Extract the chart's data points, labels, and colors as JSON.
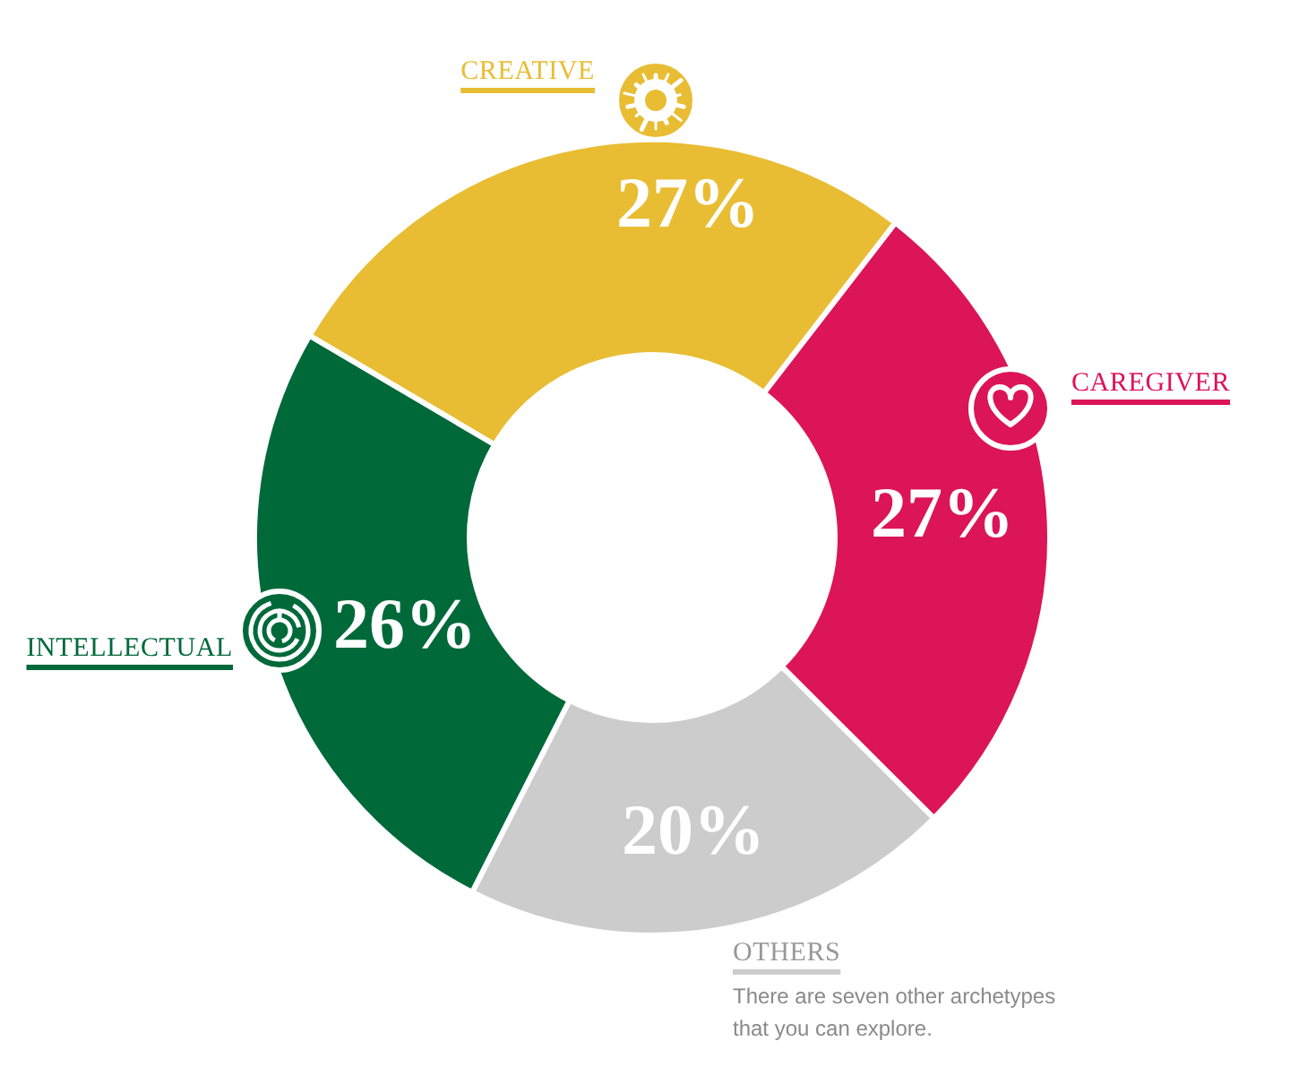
{
  "chart_data": {
    "type": "donut",
    "categories": [
      "CREATIVE",
      "CAREGIVER",
      "OTHERS",
      "INTELLECTUAL"
    ],
    "values": [
      27,
      27,
      20,
      26
    ],
    "colors": [
      "#e9bd33",
      "#dc1458",
      "#cccccc",
      "#00693a"
    ],
    "value_labels": [
      "27%",
      "27%",
      "20%",
      "26%"
    ],
    "annotations": [
      "There are seven other archetypes that you can explore."
    ]
  }
}
